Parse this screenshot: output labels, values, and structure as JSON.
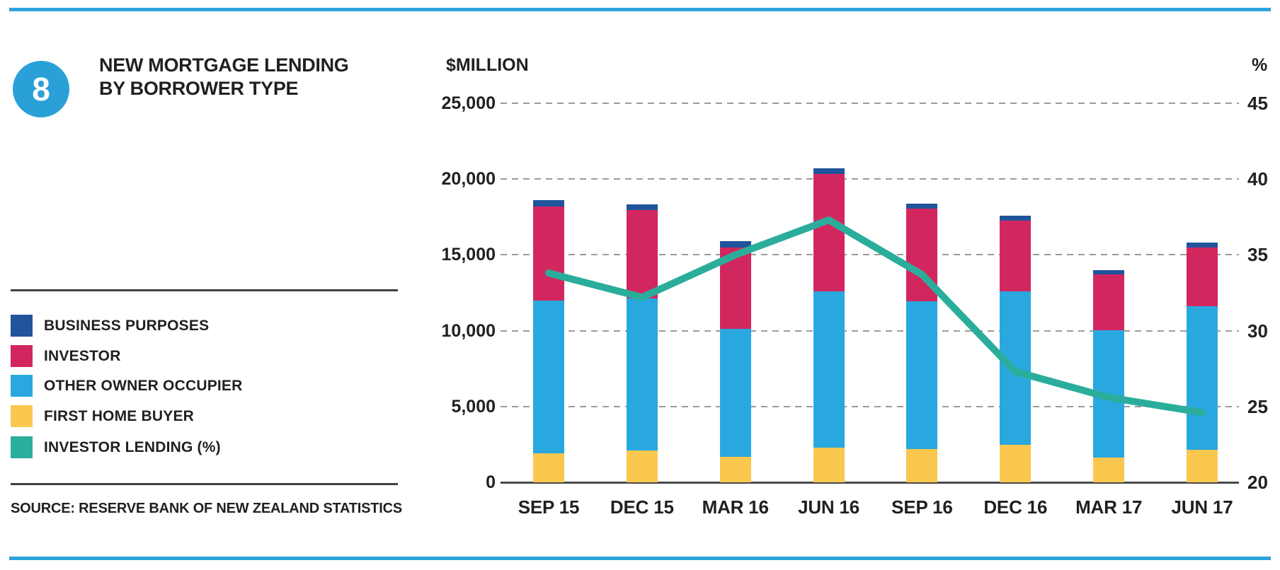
{
  "figure": {
    "number": "8",
    "title_line1": "NEW MORTGAGE LENDING",
    "title_line2": "BY BORROWER TYPE",
    "source": "SOURCE: RESERVE BANK OF NEW ZEALAND STATISTICS"
  },
  "legend": {
    "items": [
      {
        "label": "BUSINESS PURPOSES",
        "color": "#20549B"
      },
      {
        "label": "INVESTOR",
        "color": "#D2275E"
      },
      {
        "label": "OTHER OWNER OCCUPIER",
        "color": "#29A8E0"
      },
      {
        "label": "FIRST HOME BUYER",
        "color": "#FAC74F"
      },
      {
        "label": "INVESTOR LENDING (%)",
        "color": "#2BAD9C"
      }
    ]
  },
  "chart_data": {
    "type": "bar",
    "stacked": true,
    "title": "NEW MORTGAGE LENDING BY BORROWER TYPE",
    "categories": [
      "SEP 15",
      "DEC 15",
      "MAR 16",
      "JUN 16",
      "SEP 16",
      "DEC 16",
      "MAR 17",
      "JUN 17"
    ],
    "series": [
      {
        "name": "FIRST HOME BUYER",
        "color": "#FAC74F",
        "values": [
          1900,
          2100,
          1700,
          2300,
          2200,
          2450,
          1650,
          2150
        ]
      },
      {
        "name": "OTHER OWNER OCCUPIER",
        "color": "#29A8E0",
        "values": [
          10100,
          10050,
          8400,
          10300,
          9750,
          10150,
          8400,
          9450
        ]
      },
      {
        "name": "INVESTOR",
        "color": "#D2275E",
        "values": [
          6200,
          5800,
          5400,
          7750,
          6100,
          4650,
          3650,
          3900
        ]
      },
      {
        "name": "BUSINESS PURPOSES",
        "color": "#20549B",
        "values": [
          400,
          400,
          400,
          350,
          350,
          350,
          300,
          300
        ]
      }
    ],
    "totals": [
      18600,
      18350,
      15900,
      20700,
      18400,
      17600,
      14000,
      15800
    ],
    "line_series": {
      "name": "INVESTOR LENDING (%)",
      "color": "#2BAD9C",
      "axis": "right",
      "values": [
        33.8,
        32.2,
        35.0,
        37.3,
        33.7,
        27.3,
        25.6,
        24.6
      ]
    },
    "left_axis": {
      "label": "$MILLION",
      "min": 0,
      "max": 25000,
      "ticks": [
        "25,000",
        "20,000",
        "15,000",
        "10,000",
        "5,000",
        "0"
      ]
    },
    "right_axis": {
      "label": "%",
      "min": 20,
      "max": 45,
      "ticks": [
        "45",
        "40",
        "35",
        "30",
        "25",
        "20"
      ]
    },
    "grid": "horizontal-dashed",
    "legend_position": "left"
  },
  "colors": {
    "accent_rule": "#2BA3DC",
    "figure_badge": "#2AA0D8",
    "text": "#231F20",
    "gridline": "#9B9B9B",
    "axis_line": "#4A4A4C",
    "legend_rule": "#414042"
  }
}
